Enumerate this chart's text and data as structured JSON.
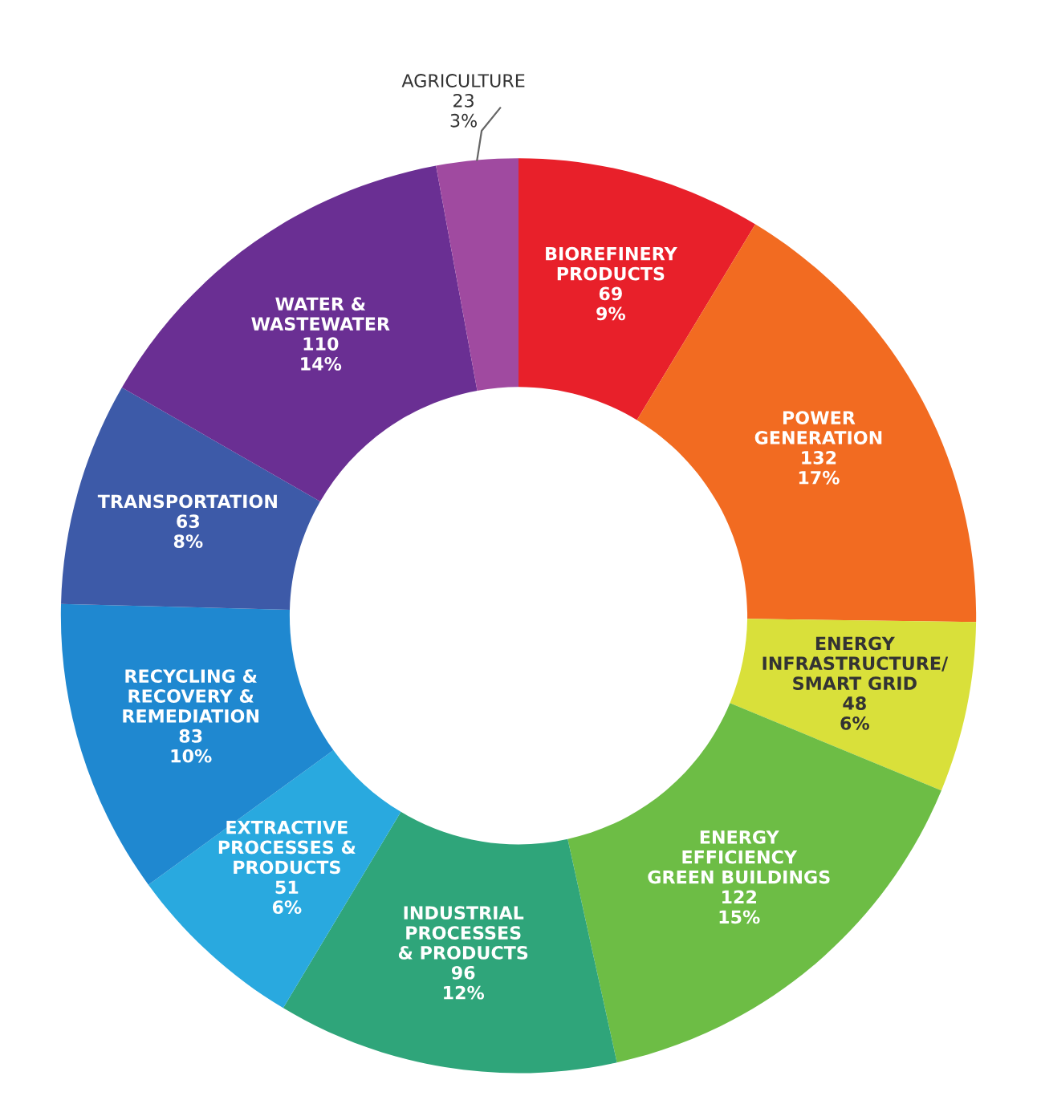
{
  "chart_data": {
    "type": "donut",
    "categories": [
      "BIOREFINERY\nPRODUCTS",
      "POWER\nGENERATION",
      "ENERGY\nINFRASTRUCTURE/\nSMART GRID",
      "ENERGY\nEFFICIENCY\nGREEN BUILDINGS",
      "INDUSTRIAL\nPROCESSES\n& PRODUCTS",
      "EXTRACTIVE\nPROCESSES &\nPRODUCTS",
      "RECYCLING &\nRECOVERY &\nREMEDIATION",
      "TRANSPORTATION",
      "WATER &\nWASTEWATER",
      "AGRICULTURE"
    ],
    "values": [
      69,
      132,
      48,
      122,
      96,
      51,
      83,
      63,
      110,
      23
    ],
    "value_labels": [
      "69\n9%",
      "132\n17%",
      "48\n6%",
      "122\n15%",
      "96\n12%",
      "51\n6%",
      "83\n10%",
      "63\n8%",
      "110\n14%",
      "23\n3%"
    ],
    "colors": [
      "#e8202a",
      "#f26b21",
      "#d9e03a",
      "#6dbd45",
      "#2fa57a",
      "#29a9df",
      "#1f88d0",
      "#3d5aa8",
      "#6a2f93",
      "#a04aa0"
    ],
    "legend": false
  }
}
